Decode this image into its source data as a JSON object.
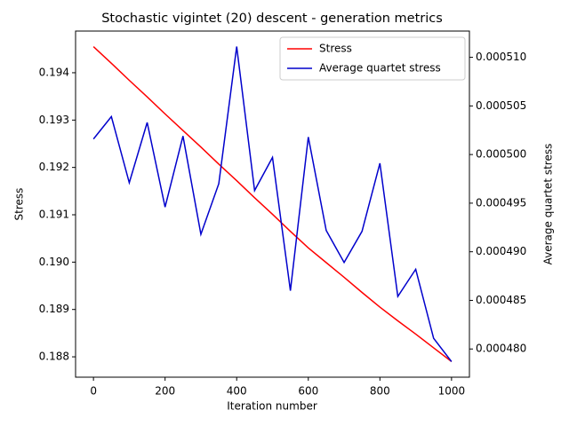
{
  "chart_data": {
    "type": "line",
    "title": "Stochastic vigintet (20) descent - generation metrics",
    "xlabel": "Iteration number",
    "ylabel": "Stress",
    "y2label": "Average quartet stress",
    "x": [
      0,
      50,
      100,
      150,
      200,
      250,
      300,
      350,
      400,
      450,
      500,
      550,
      600,
      650,
      700,
      750,
      800,
      850,
      900,
      950,
      1000
    ],
    "series": [
      {
        "name": "Stress",
        "color": "#ff0000",
        "axis": "y",
        "values": [
          0.19455,
          0.1942,
          0.19384,
          0.19349,
          0.19313,
          0.19278,
          0.19243,
          0.19207,
          0.19172,
          0.19136,
          0.19101,
          0.19065,
          0.1903,
          0.18999,
          0.18968,
          0.18936,
          0.18905,
          0.18876,
          0.18848,
          0.18819,
          0.1879
        ]
      },
      {
        "name": "Average quartet stress",
        "color": "#0000cc",
        "axis": "y2",
        "values": [
          0.0005016,
          0.0005039,
          0.0004971,
          0.0005033,
          0.0004946,
          0.0005019,
          0.0004918,
          0.000497,
          0.0005111,
          0.0004963,
          0.0004997,
          0.000486,
          0.0005018,
          0.0004922,
          0.0004889,
          0.0004921,
          0.0004991,
          0.0004854,
          0.0004882,
          0.0004811,
          0.0004787
        ]
      }
    ],
    "xlim": [
      -50,
      1050
    ],
    "xticks": [
      0,
      200,
      400,
      600,
      800,
      1000
    ],
    "ylim": [
      0.18757,
      0.19488
    ],
    "yticks": [
      0.188,
      0.189,
      {
        "value": 0.19,
        "label": "0.190"
      },
      0.191,
      0.192,
      0.193,
      0.194
    ],
    "y2lim": [
      0.0004771,
      0.0005127
    ],
    "y2ticks": [
      {
        "value": 0.00048,
        "label": "0.000480"
      },
      0.000485,
      {
        "value": 0.00049,
        "label": "0.000490"
      },
      0.000495,
      {
        "value": 0.0005,
        "label": "0.000500"
      },
      0.000505,
      {
        "value": 0.00051,
        "label": "0.000510"
      }
    ],
    "legend": "upper right",
    "grid": false
  }
}
